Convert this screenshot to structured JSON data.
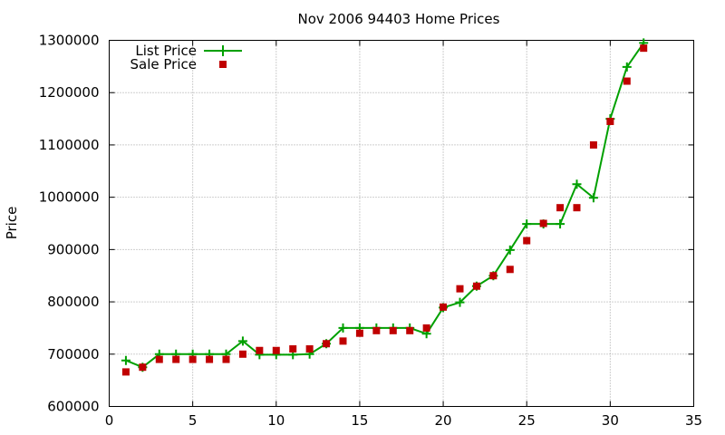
{
  "chart_data": {
    "type": "line",
    "title": "Nov 2006 94403 Home Prices",
    "xlabel": "",
    "ylabel": "Price",
    "xlim": [
      0,
      35
    ],
    "ylim": [
      600000,
      1300000
    ],
    "x_ticks": [
      0,
      5,
      10,
      15,
      20,
      25,
      30,
      35
    ],
    "y_ticks": [
      600000,
      700000,
      800000,
      900000,
      1000000,
      1100000,
      1200000,
      1300000
    ],
    "x_tick_labels": [
      "0",
      "5",
      "10",
      "15",
      "20",
      "25",
      "30",
      "35"
    ],
    "y_tick_labels": [
      "600000",
      "700000",
      "800000",
      "900000",
      "1000000",
      "1100000",
      "1200000",
      "1300000"
    ],
    "grid": true,
    "legend_position": "top-left",
    "series": [
      {
        "name": "List Price",
        "style": "linespoints",
        "marker": "plus",
        "color": "#00a000",
        "x": [
          1,
          2,
          3,
          4,
          5,
          6,
          7,
          8,
          9,
          10,
          11,
          12,
          13,
          14,
          15,
          16,
          17,
          18,
          19,
          20,
          21,
          22,
          23,
          24,
          25,
          26,
          27,
          28,
          29,
          30,
          31,
          32
        ],
        "values": [
          688000,
          675000,
          700000,
          700000,
          700000,
          700000,
          700000,
          725000,
          699000,
          699000,
          699000,
          700000,
          720000,
          750000,
          750000,
          750000,
          750000,
          750000,
          739000,
          789000,
          799000,
          830000,
          850000,
          899000,
          949000,
          949000,
          949000,
          1025000,
          999000,
          1150000,
          1249000,
          1295000
        ]
      },
      {
        "name": "Sale Price",
        "style": "points",
        "marker": "square",
        "color": "#c00000",
        "x": [
          1,
          2,
          3,
          4,
          5,
          6,
          7,
          8,
          9,
          10,
          11,
          12,
          13,
          14,
          15,
          16,
          17,
          18,
          19,
          20,
          21,
          22,
          23,
          24,
          25,
          26,
          27,
          28,
          29,
          30,
          31,
          32
        ],
        "values": [
          666000,
          675000,
          690000,
          690000,
          690000,
          690000,
          690000,
          700000,
          707000,
          707000,
          710000,
          710000,
          720000,
          725000,
          740000,
          745000,
          745000,
          745000,
          750000,
          790000,
          825000,
          830000,
          850000,
          862000,
          917000,
          950000,
          980000,
          980000,
          1100000,
          1145000,
          1222000,
          1285000
        ]
      }
    ]
  }
}
